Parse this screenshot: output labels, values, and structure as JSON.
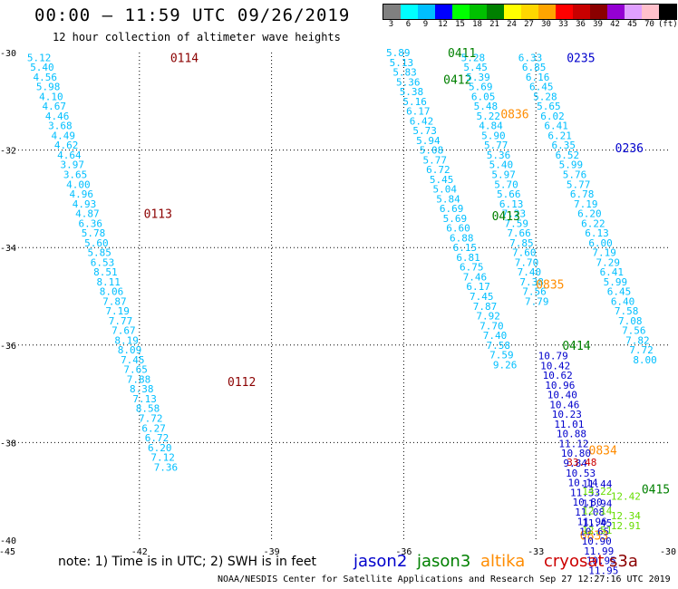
{
  "header": {
    "title": "00:00 – 11:59 UTC 09/26/2019",
    "subtitle": "12 hour collection of altimeter wave heights"
  },
  "scale": {
    "labels": [
      "3",
      "6",
      "9",
      "12",
      "15",
      "18",
      "21",
      "24",
      "27",
      "30",
      "33",
      "36",
      "39",
      "42",
      "45",
      "70",
      "(ft)"
    ],
    "colors": [
      "#808080",
      "#00ffff",
      "#00bfff",
      "#0000ff",
      "#00ff00",
      "#00c000",
      "#008000",
      "#ffff00",
      "#ffd700",
      "#ffa500",
      "#ff0000",
      "#c80000",
      "#8b0000",
      "#9400d3",
      "#e0a0ff",
      "#ffc0cb",
      "#000000"
    ]
  },
  "axes": {
    "lon_labels": [
      "-45",
      "-42",
      "-39",
      "-36",
      "-33",
      "-30"
    ],
    "lat_labels": [
      "-30",
      "-32",
      "-34",
      "-36",
      "-38",
      "-40"
    ]
  },
  "satellites": [
    {
      "name": "jason2",
      "color": "#0000cc"
    },
    {
      "name": "jason3",
      "color": "#008000"
    },
    {
      "name": "altika",
      "color": "#ff8c00"
    },
    {
      "name": "cryosat",
      "color": "#cc0000"
    },
    {
      "name": "s3a",
      "color": "#8b0000"
    }
  ],
  "tracks": [
    {
      "pass": "0114",
      "pass_color": "#8b0000",
      "pass_lon": -41.3,
      "pass_lat": -30.1,
      "color": "#00bfff",
      "lon0": -44.55,
      "lat0": -30.1,
      "dlon": 0.0685,
      "dlat": 0.2,
      "values": [
        "5.12",
        "5.40",
        "4.56",
        "5.98",
        "4.10",
        "4.67",
        "4.46",
        "3.68",
        "4.49",
        "4.62",
        "4.64",
        "3.97",
        "3.65",
        "4.00",
        "4.96",
        "4.93",
        "4.87",
        "6.36",
        "5.78",
        "5.60",
        "5.85",
        "6.53",
        "8.51",
        "8.11",
        "8.06",
        "7.87",
        "7.19",
        "7.77",
        "7.67",
        "8.19",
        "8.09",
        "7.45",
        "7.65",
        "7.88",
        "8.38",
        "7.13",
        "8.58",
        "7.72",
        "6.27",
        "6.72",
        "6.20",
        "7.12",
        "7.36"
      ]
    },
    {
      "pass": "0411",
      "pass_color": "#008000",
      "pass_lon": -35.0,
      "pass_lat": -30.0,
      "color": "#00bfff",
      "lon0": -36.4,
      "lat0": -30.0,
      "dlon": 0.0758,
      "dlat": 0.2,
      "values": [
        "5.89",
        "5.13",
        "5.83",
        "5.36",
        "5.38",
        "5.16",
        "6.17",
        "6.42",
        "5.73",
        "5.94",
        "5.08",
        "5.77",
        "6.72",
        "5.45",
        "5.04",
        "5.84",
        "6.69",
        "5.69",
        "6.60",
        "6.88",
        "6.15",
        "6.81",
        "6.75",
        "7.46",
        "6.17",
        "7.45",
        "7.87",
        "7.92",
        "7.70",
        "7.40",
        "7.58",
        "7.59",
        "9.26"
      ]
    },
    {
      "pass": "0412",
      "pass_color": "#008000",
      "pass_lon": -35.1,
      "pass_lat": -30.55,
      "color": "#00bfff",
      "lon0": -34.7,
      "lat0": -30.1,
      "dlon": 0.058,
      "dlat": 0.2,
      "values": [
        "5.28",
        "5.45",
        "5.39",
        "5.69",
        "6.05",
        "5.48",
        "5.22",
        "4.84",
        "5.90",
        "5.77",
        "5.36",
        "5.40",
        "5.97",
        "5.70",
        "5.66",
        "6.13",
        "7.23",
        "7.59",
        "7.66",
        "7.85",
        "7.60",
        "7.70",
        "7.40",
        "7.38",
        "7.56",
        "7.79"
      ]
    },
    {
      "pass": "0235",
      "pass_color": "#0000cc",
      "pass_lon": -32.3,
      "pass_lat": -30.1,
      "color": "#00bfff",
      "lon0": -33.4,
      "lat0": -30.1,
      "dlon": 0.084,
      "dlat": 0.2,
      "values": [
        "6.33",
        "6.85",
        "6.16",
        "6.45",
        "5.28",
        "5.65",
        "6.02",
        "6.41",
        "6.21",
        "6.35",
        "6.52",
        "5.99",
        "5.76",
        "5.77",
        "6.78",
        "7.19",
        "6.20",
        "6.22",
        "6.13",
        "6.00",
        "7.19",
        "7.29",
        "6.41",
        "5.99",
        "6.45",
        "6.40",
        "7.58",
        "7.08",
        "7.56",
        "7.82",
        "7.72",
        "8.00"
      ]
    },
    {
      "pass": "0236",
      "pass_color": "#0000cc",
      "pass_lon": -31.2,
      "pass_lat": -31.95,
      "color": "#00bfff",
      "lon0": -31.25,
      "lat0": -37.0,
      "dlon": 0.0,
      "dlat": 0.0,
      "values": []
    },
    {
      "pass": "0413",
      "pass_color": "#008000",
      "pass_lon": -34.0,
      "pass_lat": -33.35,
      "color": "#00bfff",
      "lon0": -34.0,
      "lat0": -33.35,
      "dlon": 0.0,
      "dlat": 0.0,
      "values": []
    },
    {
      "pass": "0836",
      "pass_color": "#ff8c00",
      "pass_lon": -33.8,
      "pass_lat": -31.25,
      "color": "#ff8c00",
      "lon0": -33.8,
      "lat0": -31.25,
      "dlon": 0.0,
      "dlat": 0.0,
      "values": []
    },
    {
      "pass": "0835",
      "pass_color": "#ff8c00",
      "pass_lon": -33.0,
      "pass_lat": -34.75,
      "color": "#ff8c00",
      "lon0": -33.0,
      "lat0": -34.75,
      "dlon": 0.0,
      "dlat": 0.0,
      "values": []
    },
    {
      "pass": "0113",
      "pass_color": "#8b0000",
      "pass_lon": -41.9,
      "pass_lat": -33.3,
      "color": "#8b0000",
      "lon0": -41.9,
      "lat0": -33.3,
      "dlon": 0.0,
      "dlat": 0.0,
      "values": []
    },
    {
      "pass": "0112",
      "pass_color": "#8b0000",
      "pass_lon": -40.0,
      "pass_lat": -36.75,
      "color": "#8b0000",
      "lon0": -40.0,
      "lat0": -36.75,
      "dlon": 0.0,
      "dlat": 0.0,
      "values": []
    },
    {
      "pass": "0414",
      "pass_color": "#008000",
      "pass_lon": -32.4,
      "pass_lat": -36.0,
      "color": "#008000",
      "lon0": -32.4,
      "lat0": -36.0,
      "dlon": 0.0,
      "dlat": 0.0,
      "values": []
    },
    {
      "pass": "0415",
      "pass_color": "#008000",
      "pass_lon": -30.6,
      "pass_lat": -38.95,
      "color": "#008000",
      "lon0": -30.6,
      "lat0": -38.95,
      "dlon": 0.0,
      "dlat": 0.0,
      "values": []
    },
    {
      "pass": "0834",
      "pass_color": "#ff8c00",
      "pass_lon": -31.8,
      "pass_lat": -38.15,
      "color": "#ff8c00",
      "lon0": -31.8,
      "lat0": -38.15,
      "dlon": 0.0,
      "dlat": 0.0,
      "values": []
    },
    {
      "pass": "0833",
      "pass_color": "#ff8c00",
      "pass_lon": -32.0,
      "pass_lat": -39.9,
      "color": "#ff8c00",
      "lon0": -32.0,
      "lat0": -39.9,
      "dlon": 0.0,
      "dlat": 0.0,
      "values": []
    },
    {
      "pass": "",
      "pass_color": "#0000cc",
      "pass_lon": -33.0,
      "pass_lat": -36.2,
      "color": "#0000cc",
      "lon0": -32.95,
      "lat0": -36.22,
      "dlon": 0.052,
      "dlat": 0.2,
      "values": [
        "10.79",
        "10.42",
        "10.62",
        "10.96",
        "10.40",
        "10.46",
        "10.23",
        "11.01",
        "10.88",
        "11.12",
        "10.80",
        "9.84",
        "10.53",
        "10.14",
        "11.33",
        "10.80",
        "11.08",
        "11.96",
        "10.65",
        "10.90",
        "11.99",
        "10.95",
        "11.95"
      ]
    },
    {
      "pass": "",
      "pass_color": "#0000cc",
      "pass_lon": -32.1,
      "pass_lat": -38.4,
      "color": "#0000cc",
      "lon0": -31.95,
      "lat0": -38.85,
      "dlon": 0.0,
      "dlat": 0.2,
      "values": [
        "11.44",
        "",
        "11.94",
        "",
        "11.45"
      ]
    },
    {
      "pass": "",
      "pass_color": "#cc0000",
      "pass_lon": -32.3,
      "pass_lat": -38.4,
      "color": "#cc0000",
      "lon0": -32.3,
      "lat0": -38.4,
      "dlon": 0.0,
      "dlat": 0.0,
      "values": [
        "33.48"
      ]
    },
    {
      "pass": "",
      "pass_color": "#00ff00",
      "pass_lon": -32.0,
      "pass_lat": -39.0,
      "color": "#66dd00",
      "lon0": -31.95,
      "lat0": -39.0,
      "dlon": 0.0,
      "dlat": 0.4,
      "values": [
        "14.22",
        "12.14",
        "12.51"
      ]
    },
    {
      "pass": "",
      "pass_color": "#00ff00",
      "pass_lon": -31.3,
      "pass_lat": -39.1,
      "color": "#66dd00",
      "lon0": -31.3,
      "lat0": -39.1,
      "dlon": 0.0,
      "dlat": 0.2,
      "values": [
        "12.42",
        "",
        "12.34",
        "12.91"
      ]
    }
  ],
  "note": "note: 1) Time is in UTC; 2) SWH is in feet",
  "credit": "NOAA/NESDIS Center for Satellite Applications and Research   Sep 27 12:27:16 UTC 2019"
}
